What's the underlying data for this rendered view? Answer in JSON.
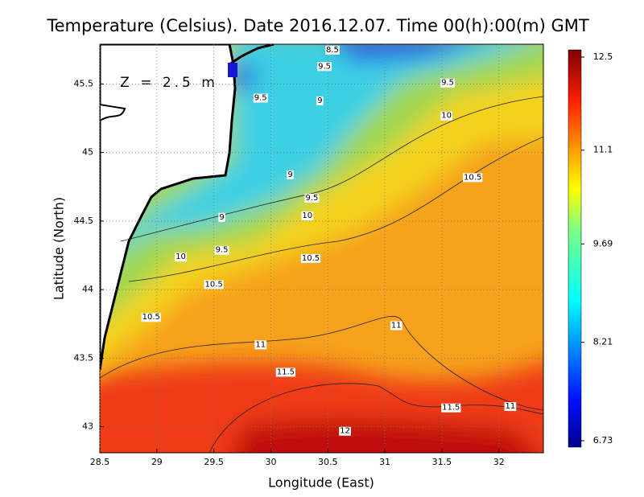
{
  "chart_data": {
    "type": "contour",
    "title": "Temperature (Celsius). Date 2016.12.07. Time 00(h):00(m)  GMT",
    "annotation": "Z = 2.5 m",
    "xlabel": "Longitude (East)",
    "ylabel": "Latitude (North)",
    "xlim": [
      28.5,
      32.39
    ],
    "ylim": [
      42.81,
      45.79
    ],
    "xticks": [
      28.5,
      29,
      29.5,
      30,
      30.5,
      31,
      31.5,
      32
    ],
    "yticks": [
      43,
      43.5,
      44,
      44.5,
      45,
      45.5
    ],
    "grid": true,
    "colorbar": {
      "lim": [
        6.73,
        12.5
      ],
      "ticks": [
        12.5,
        11.1,
        9.69,
        8.21,
        6.73
      ]
    },
    "contour_labels": [
      {
        "x": 30.54,
        "y": 45.75,
        "value": 8.5
      },
      {
        "x": 30.47,
        "y": 45.63,
        "value": 9.5
      },
      {
        "x": 31.55,
        "y": 45.51,
        "value": 9.5
      },
      {
        "x": 29.91,
        "y": 45.4,
        "value": 9.5
      },
      {
        "x": 30.43,
        "y": 45.38,
        "value": 9
      },
      {
        "x": 31.54,
        "y": 45.27,
        "value": 10
      },
      {
        "x": 30.17,
        "y": 44.84,
        "value": 9
      },
      {
        "x": 31.77,
        "y": 44.82,
        "value": 10.5
      },
      {
        "x": 30.36,
        "y": 44.67,
        "value": 9.5
      },
      {
        "x": 30.32,
        "y": 44.54,
        "value": 10
      },
      {
        "x": 29.57,
        "y": 44.53,
        "value": 9
      },
      {
        "x": 29.57,
        "y": 44.29,
        "value": 9.5
      },
      {
        "x": 29.21,
        "y": 44.24,
        "value": 10
      },
      {
        "x": 30.35,
        "y": 44.23,
        "value": 10.5
      },
      {
        "x": 29.5,
        "y": 44.04,
        "value": 10.5
      },
      {
        "x": 28.95,
        "y": 43.8,
        "value": 10.5
      },
      {
        "x": 31.1,
        "y": 43.74,
        "value": 11
      },
      {
        "x": 29.91,
        "y": 43.6,
        "value": 11
      },
      {
        "x": 30.13,
        "y": 43.4,
        "value": 11.5
      },
      {
        "x": 31.58,
        "y": 43.14,
        "value": 11.5
      },
      {
        "x": 32.1,
        "y": 43.15,
        "value": 11
      },
      {
        "x": 30.65,
        "y": 42.97,
        "value": 12
      }
    ]
  }
}
